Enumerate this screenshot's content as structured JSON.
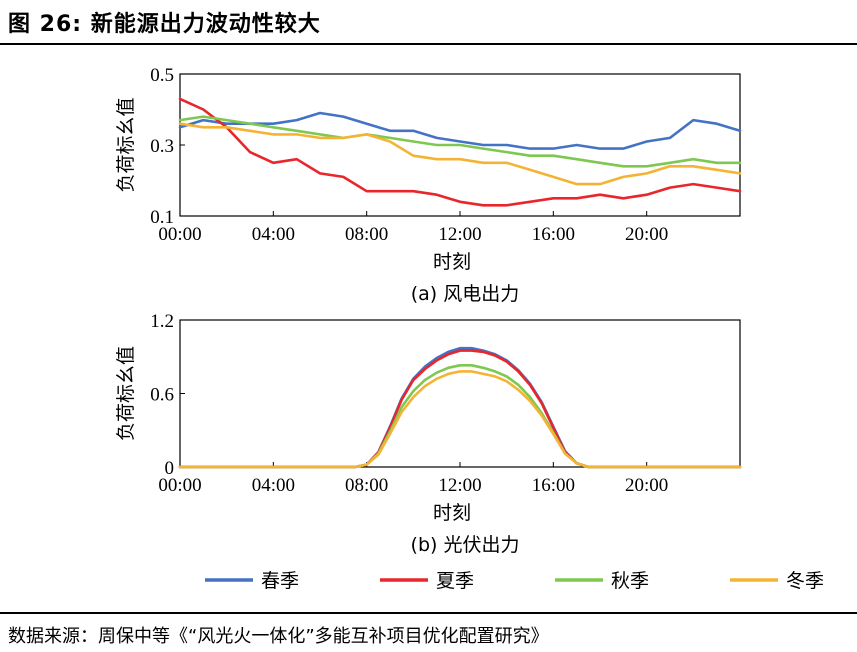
{
  "figure": {
    "title": "图 26: 新能源出力波动性较大",
    "source": "数据来源：周保中等《“风光火一体化”多能互补项目优化配置研究》"
  },
  "legend": [
    {
      "name": "春季",
      "color": "#4472c4"
    },
    {
      "name": "夏季",
      "color": "#e8262c"
    },
    {
      "name": "秋季",
      "color": "#7ec850"
    },
    {
      "name": "冬季",
      "color": "#f5b335"
    }
  ],
  "chart_data": [
    {
      "type": "line",
      "caption": "(a) 风电出力",
      "xlabel": "时刻",
      "ylabel": "负荷标幺值",
      "xlim": [
        0,
        24
      ],
      "ylim": [
        0.1,
        0.5
      ],
      "xticks": [
        0,
        4,
        8,
        12,
        16,
        20
      ],
      "xtick_labels": [
        "00:00",
        "04:00",
        "08:00",
        "12:00",
        "16:00",
        "20:00"
      ],
      "yticks": [
        0.1,
        0.3,
        0.5
      ],
      "ytick_labels": [
        "0.1",
        "0.3",
        "0.5"
      ],
      "x": [
        0,
        1,
        2,
        3,
        4,
        5,
        6,
        7,
        8,
        9,
        10,
        11,
        12,
        13,
        14,
        15,
        16,
        17,
        18,
        19,
        20,
        21,
        22,
        23,
        24
      ],
      "series": [
        {
          "name": "春季",
          "color": "#4472c4",
          "values": [
            0.35,
            0.37,
            0.36,
            0.36,
            0.36,
            0.37,
            0.39,
            0.38,
            0.36,
            0.34,
            0.34,
            0.32,
            0.31,
            0.3,
            0.3,
            0.29,
            0.29,
            0.3,
            0.29,
            0.29,
            0.31,
            0.32,
            0.37,
            0.36,
            0.34
          ]
        },
        {
          "name": "夏季",
          "color": "#e8262c",
          "values": [
            0.43,
            0.4,
            0.35,
            0.28,
            0.25,
            0.26,
            0.22,
            0.21,
            0.17,
            0.17,
            0.17,
            0.16,
            0.14,
            0.13,
            0.13,
            0.14,
            0.15,
            0.15,
            0.16,
            0.15,
            0.16,
            0.18,
            0.19,
            0.18,
            0.17
          ]
        },
        {
          "name": "秋季",
          "color": "#7ec850",
          "values": [
            0.37,
            0.38,
            0.37,
            0.36,
            0.35,
            0.34,
            0.33,
            0.32,
            0.33,
            0.32,
            0.31,
            0.3,
            0.3,
            0.29,
            0.28,
            0.27,
            0.27,
            0.26,
            0.25,
            0.24,
            0.24,
            0.25,
            0.26,
            0.25,
            0.25
          ]
        },
        {
          "name": "冬季",
          "color": "#f5b335",
          "values": [
            0.36,
            0.35,
            0.35,
            0.34,
            0.33,
            0.33,
            0.32,
            0.32,
            0.33,
            0.31,
            0.27,
            0.26,
            0.26,
            0.25,
            0.25,
            0.23,
            0.21,
            0.19,
            0.19,
            0.21,
            0.22,
            0.24,
            0.24,
            0.23,
            0.22
          ]
        }
      ]
    },
    {
      "type": "line",
      "caption": "(b) 光伏出力",
      "xlabel": "时刻",
      "ylabel": "负荷标幺值",
      "xlim": [
        0,
        24
      ],
      "ylim": [
        0,
        1.2
      ],
      "xticks": [
        0,
        4,
        8,
        12,
        16,
        20
      ],
      "xtick_labels": [
        "00:00",
        "04:00",
        "08:00",
        "12:00",
        "16:00",
        "20:00"
      ],
      "yticks": [
        0,
        0.6,
        1.2
      ],
      "ytick_labels": [
        "0",
        "0.6",
        "1.2"
      ],
      "x": [
        0,
        1,
        2,
        3,
        4,
        5,
        6,
        7,
        7.5,
        8,
        8.5,
        9,
        9.5,
        10,
        10.5,
        11,
        11.5,
        12,
        12.5,
        13,
        13.5,
        14,
        14.5,
        15,
        15.5,
        16,
        16.5,
        17,
        17.5,
        18,
        19,
        20,
        21,
        22,
        23,
        24
      ],
      "series": [
        {
          "name": "春季",
          "color": "#4472c4",
          "values": [
            0,
            0,
            0,
            0,
            0,
            0,
            0,
            0,
            0,
            0.02,
            0.12,
            0.33,
            0.56,
            0.72,
            0.82,
            0.89,
            0.94,
            0.97,
            0.97,
            0.95,
            0.92,
            0.87,
            0.79,
            0.68,
            0.53,
            0.33,
            0.13,
            0.03,
            0,
            0,
            0,
            0,
            0,
            0,
            0,
            0
          ]
        },
        {
          "name": "夏季",
          "color": "#e8262c",
          "values": [
            0,
            0,
            0,
            0,
            0,
            0,
            0,
            0,
            0,
            0.02,
            0.12,
            0.32,
            0.55,
            0.71,
            0.8,
            0.87,
            0.92,
            0.95,
            0.95,
            0.94,
            0.91,
            0.86,
            0.78,
            0.67,
            0.52,
            0.32,
            0.12,
            0.03,
            0,
            0,
            0,
            0,
            0,
            0,
            0,
            0
          ]
        },
        {
          "name": "秋季",
          "color": "#7ec850",
          "values": [
            0,
            0,
            0,
            0,
            0,
            0,
            0,
            0,
            0,
            0.02,
            0.11,
            0.29,
            0.49,
            0.62,
            0.71,
            0.77,
            0.81,
            0.83,
            0.83,
            0.81,
            0.78,
            0.74,
            0.67,
            0.57,
            0.44,
            0.28,
            0.11,
            0.03,
            0,
            0,
            0,
            0,
            0,
            0,
            0,
            0
          ]
        },
        {
          "name": "冬季",
          "color": "#f5b335",
          "values": [
            0,
            0,
            0,
            0,
            0,
            0,
            0,
            0,
            0,
            0.02,
            0.1,
            0.27,
            0.45,
            0.57,
            0.66,
            0.72,
            0.76,
            0.78,
            0.78,
            0.76,
            0.74,
            0.7,
            0.63,
            0.54,
            0.42,
            0.27,
            0.11,
            0.03,
            0,
            0,
            0,
            0,
            0,
            0,
            0,
            0
          ]
        }
      ]
    }
  ]
}
